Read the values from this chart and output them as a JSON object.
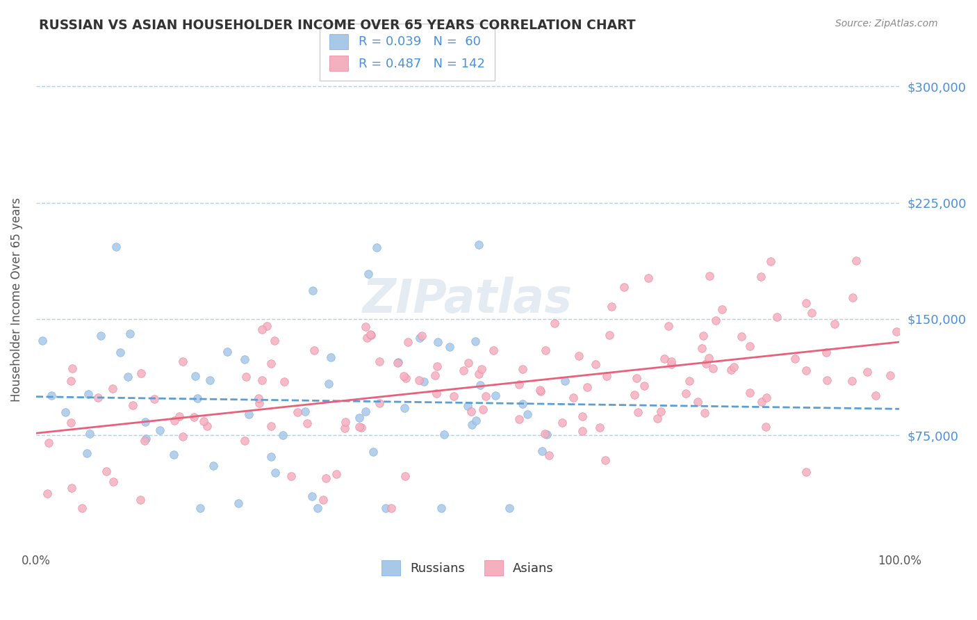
{
  "title": "RUSSIAN VS ASIAN HOUSEHOLDER INCOME OVER 65 YEARS CORRELATION CHART",
  "source": "Source: ZipAtlas.com",
  "ylabel": "Householder Income Over 65 years",
  "xlim": [
    0,
    1.0
  ],
  "ylim": [
    0,
    325000
  ],
  "ytick_values": [
    75000,
    150000,
    225000,
    300000
  ],
  "ytick_labels": [
    "$75,000",
    "$150,000",
    "$225,000",
    "$300,000"
  ],
  "xtick_positions": [
    0,
    1.0
  ],
  "xtick_labels": [
    "0.0%",
    "100.0%"
  ],
  "legend_label_russians": "Russians",
  "legend_label_asians": "Asians",
  "legend_r_russian": "R = 0.039",
  "legend_n_russian": "N =  60",
  "legend_r_asian": "R = 0.487",
  "legend_n_asian": "N = 142",
  "watermark": "ZIPatlas",
  "color_russian_fill": "#a8c8e8",
  "color_russian_edge": "#7aaddd",
  "color_russian_line": "#5a9fd4",
  "color_asian_fill": "#f5b0c0",
  "color_asian_edge": "#e8809a",
  "color_asian_line": "#e8607a",
  "color_grid": "#b0c8e0",
  "color_ytick": "#4a90d9",
  "color_label": "#555555",
  "color_title": "#333333",
  "color_source": "#888888",
  "color_watermark": "#d0dce8"
}
